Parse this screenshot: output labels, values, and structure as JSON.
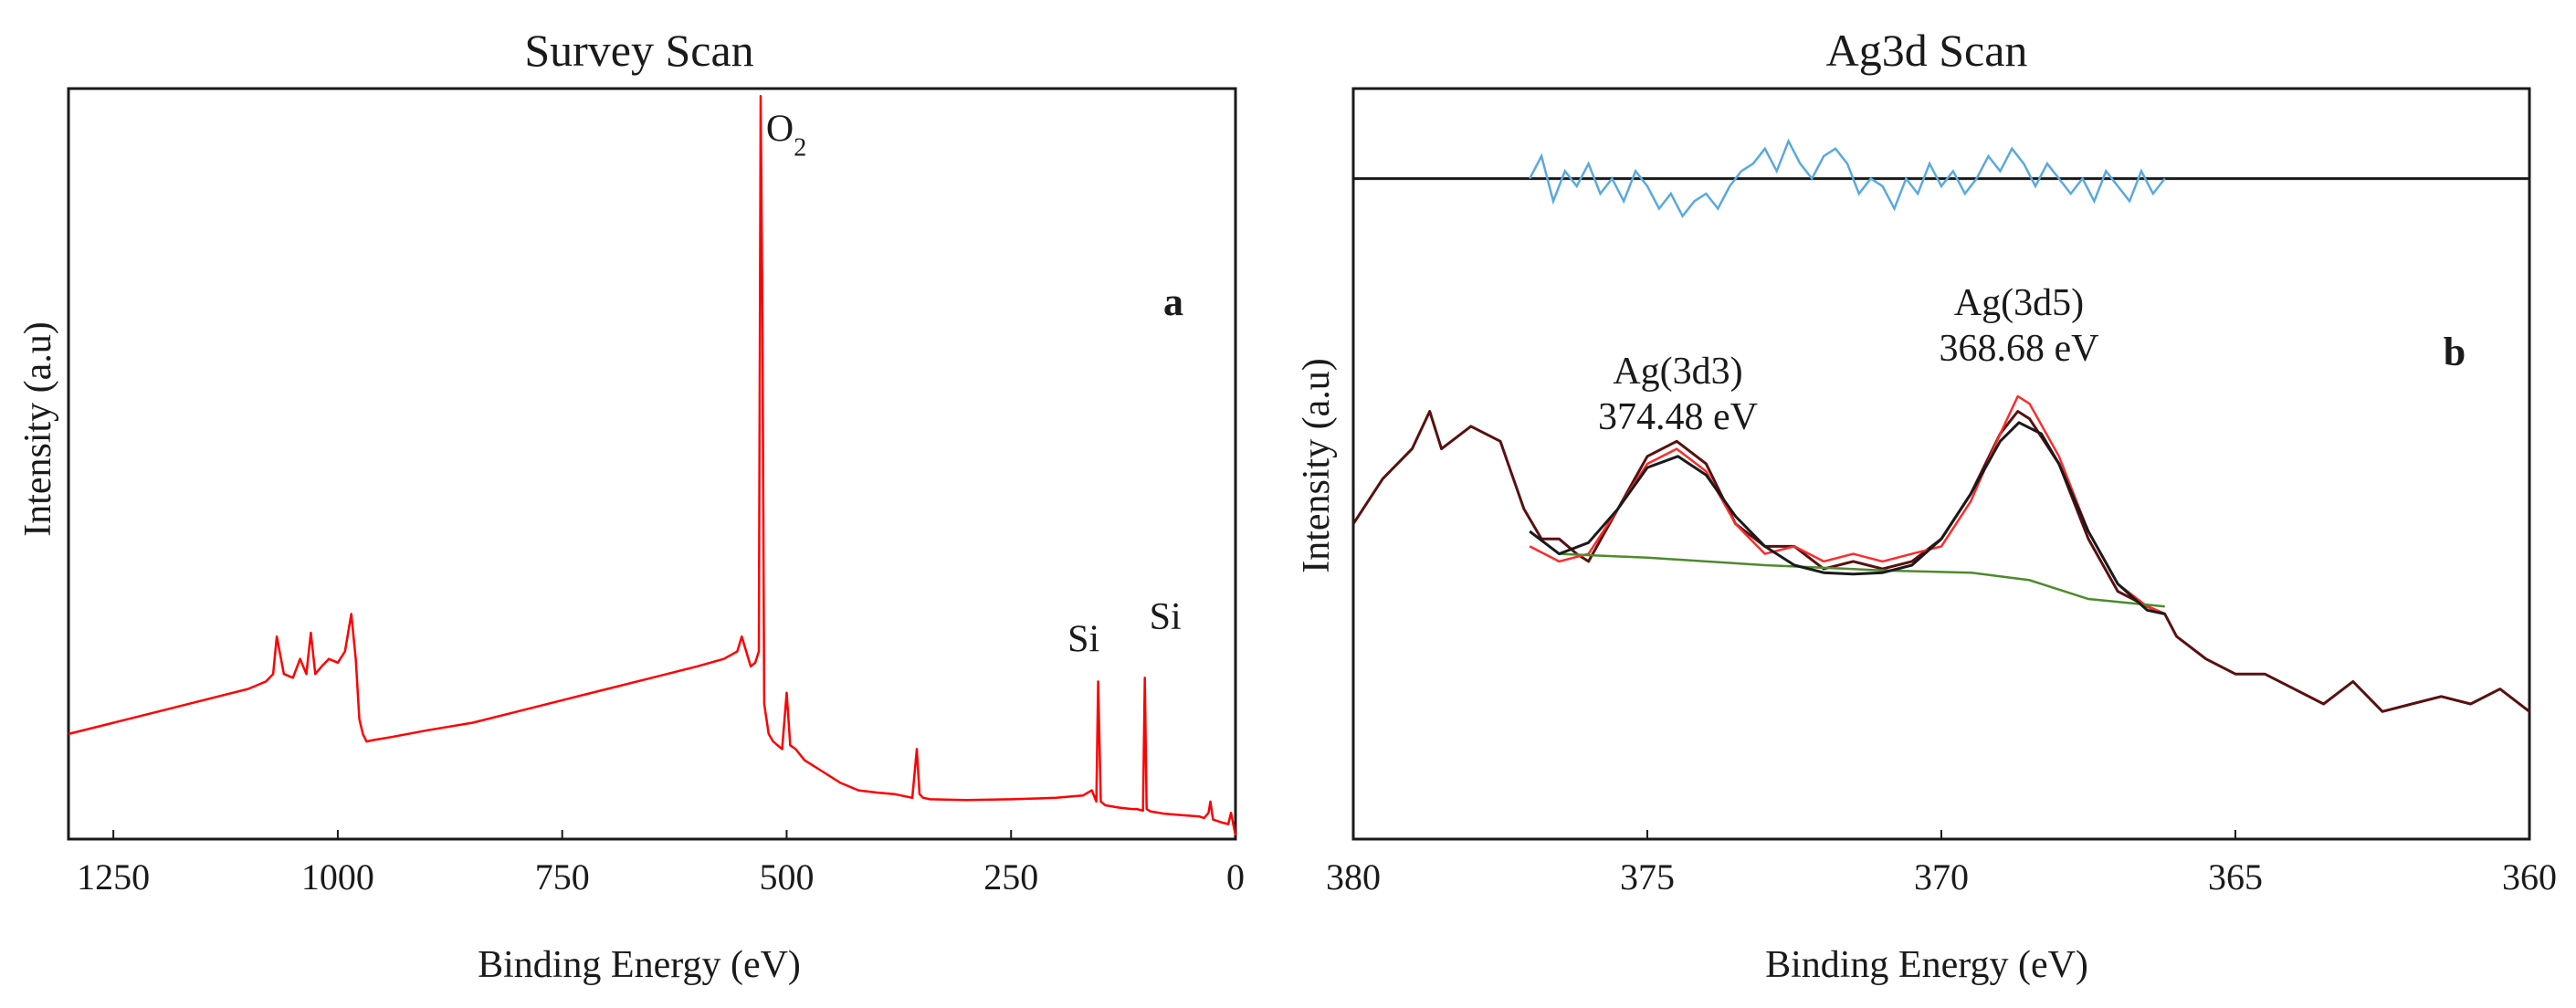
{
  "colors": {
    "survey_line": "#ff0000",
    "raw_data": "#5a1010",
    "fit_peaks": "#ff2a2a",
    "envelope": "#1a1a1a",
    "background": "#4e8a2e",
    "residual": "#5aa9dd",
    "frame": "#1a1a1a"
  },
  "chart_data": [
    {
      "type": "line",
      "title": "Survey Scan",
      "xlabel": "Binding Energy (eV)",
      "ylabel": "Intensity (a.u)",
      "panel_letter": "a",
      "xlim": [
        1300,
        0
      ],
      "ylim": [
        0,
        100
      ],
      "x_reversed": true,
      "grid": false,
      "x_ticks": [
        1250,
        1000,
        750,
        500,
        250,
        0
      ],
      "annotations": [
        {
          "text": "O",
          "sub": "2",
          "x": 523,
          "y": 93
        },
        {
          "text": "Si",
          "x": 187,
          "y": 25
        },
        {
          "text": "Si",
          "x": 96,
          "y": 28
        }
      ],
      "series": [
        {
          "color": "#ff0000",
          "x": [
            1300,
            1250,
            1200,
            1150,
            1100,
            1080,
            1072,
            1068,
            1060,
            1050,
            1042,
            1035,
            1030,
            1025,
            1018,
            1010,
            1000,
            992,
            985,
            980,
            976,
            972,
            968,
            960,
            940,
            900,
            850,
            800,
            750,
            700,
            650,
            600,
            570,
            555,
            550,
            545,
            540,
            535,
            531,
            529,
            527,
            525,
            520,
            515,
            510,
            505,
            500,
            496,
            490,
            480,
            460,
            440,
            420,
            400,
            380,
            360,
            355,
            352,
            348,
            340,
            300,
            250,
            200,
            170,
            160,
            155,
            153,
            150,
            145,
            130,
            115,
            110,
            103,
            101,
            99,
            95,
            80,
            60,
            40,
            35,
            30,
            28,
            25,
            15,
            8,
            5,
            0
          ],
          "values": [
            14,
            15.5,
            17,
            18.5,
            20,
            21,
            22,
            27,
            22,
            21.5,
            24,
            22,
            27.5,
            22,
            23,
            24,
            23.5,
            25,
            30,
            24,
            16,
            14,
            13,
            13.2,
            13.6,
            14.5,
            15.5,
            17,
            18.5,
            20,
            21.5,
            23,
            24,
            25,
            27,
            25,
            23,
            23.5,
            25,
            99,
            70,
            18,
            14,
            13,
            12.5,
            12,
            19.5,
            12.5,
            12,
            10.5,
            9,
            7.5,
            6.5,
            6.2,
            6,
            5.5,
            12,
            6,
            5.5,
            5.3,
            5.2,
            5.3,
            5.5,
            5.8,
            6.5,
            5,
            21,
            5,
            4.5,
            4.2,
            4,
            4,
            3.8,
            21.5,
            4,
            3.7,
            3.4,
            3.2,
            3.0,
            2.8,
            3.5,
            5,
            2.6,
            2.2,
            2.0,
            3.5,
            0.5
          ]
        }
      ]
    },
    {
      "type": "line",
      "title": "Ag3d Scan",
      "xlabel": "Binding Energy (eV)",
      "ylabel": "Intensity (a.u)",
      "panel_letter": "b",
      "xlim": [
        380,
        360
      ],
      "ylim": [
        0,
        100
      ],
      "x_reversed": true,
      "grid": false,
      "x_ticks": [
        380,
        375,
        370,
        365,
        360
      ],
      "residual_baseline": 88,
      "annotations": [
        {
          "line1": "Ag(3d3)",
          "line2": "374.48 eV",
          "x": 374.48
        },
        {
          "line1": "Ag(3d5)",
          "line2": "368.68 eV",
          "x": 368.68
        }
      ],
      "raw_data": {
        "x": [
          380,
          379.5,
          379,
          378.7,
          378.5,
          378,
          377.5,
          377.1,
          376.8,
          376.5,
          376.2,
          376,
          375.5,
          375,
          374.5,
          374,
          373.5,
          373,
          372.5,
          372,
          371.5,
          371,
          370.5,
          370,
          369.5,
          369,
          368.7,
          368.5,
          368,
          367.5,
          367,
          366.5,
          366.2,
          366,
          365.5,
          365,
          364.5,
          364,
          363.5,
          363,
          362.5,
          362,
          361.5,
          361,
          360.5,
          360
        ],
        "values": [
          42,
          48,
          52,
          57,
          52,
          55,
          53,
          44,
          40,
          40,
          38,
          37,
          44,
          51,
          53,
          50,
          42,
          39,
          39,
          36,
          37,
          36,
          37,
          40,
          46,
          54,
          57,
          56,
          50,
          40,
          33,
          31,
          30,
          27,
          24,
          22,
          22,
          20,
          18,
          21,
          17,
          18,
          19,
          18,
          20,
          17
        ]
      },
      "fit_peaks": {
        "x": [
          377,
          376.5,
          376,
          375.5,
          375,
          374.5,
          374,
          373.5,
          373,
          372.5,
          372,
          371.5,
          371,
          370.5,
          370,
          369.5,
          369,
          368.7,
          368.5,
          368,
          367.5,
          367,
          366.5,
          366.2
        ],
        "values": [
          39,
          37,
          38,
          44,
          50,
          52,
          49,
          42,
          38,
          39,
          37,
          38,
          37,
          38,
          39,
          45,
          54,
          59,
          58,
          51,
          41,
          34,
          31,
          30
        ]
      },
      "envelope": {
        "x": [
          377,
          376.5,
          376,
          375.5,
          375,
          374.48,
          374,
          373.5,
          373,
          372.5,
          372,
          371.5,
          371,
          370.5,
          370,
          369.5,
          369,
          368.68,
          368.3,
          368,
          367.5,
          367,
          366.5,
          366.2
        ],
        "values": [
          41,
          38,
          39.5,
          44,
          49.5,
          51,
          48.5,
          43,
          39,
          36.5,
          35.5,
          35.3,
          35.5,
          36.5,
          40,
          46,
          53,
          55.5,
          54,
          50,
          41,
          34,
          30.5,
          30
        ]
      },
      "background": {
        "x": [
          376.5,
          375,
          373,
          371,
          369.5,
          368.5,
          367.5,
          366.2
        ],
        "values": [
          38,
          37.5,
          36.5,
          35.8,
          35.5,
          34.5,
          32,
          31
        ]
      },
      "residual": {
        "x": [
          377,
          376.8,
          376.6,
          376.4,
          376.2,
          376,
          375.8,
          375.6,
          375.4,
          375.2,
          375,
          374.8,
          374.6,
          374.4,
          374.2,
          374,
          373.8,
          373.6,
          373.4,
          373.2,
          373,
          372.8,
          372.6,
          372.4,
          372.2,
          372,
          371.8,
          371.6,
          371.4,
          371.2,
          371,
          370.8,
          370.6,
          370.4,
          370.2,
          370,
          369.8,
          369.6,
          369.4,
          369.2,
          369,
          368.8,
          368.6,
          368.4,
          368.2,
          368,
          367.8,
          367.6,
          367.4,
          367.2,
          367,
          366.8,
          366.6,
          366.4,
          366.2
        ],
        "values": [
          88,
          91,
          85,
          89,
          87,
          90,
          86,
          88,
          85,
          89,
          87,
          84,
          86,
          83,
          85,
          86,
          84,
          87,
          89,
          90,
          92,
          89,
          93,
          90,
          88,
          91,
          92,
          90,
          86,
          88,
          87,
          84,
          88,
          86,
          90,
          87,
          89,
          86,
          88,
          91,
          89,
          92,
          90,
          87,
          90,
          88,
          86,
          88,
          85,
          89,
          87,
          85,
          89,
          86,
          88
        ]
      }
    }
  ]
}
